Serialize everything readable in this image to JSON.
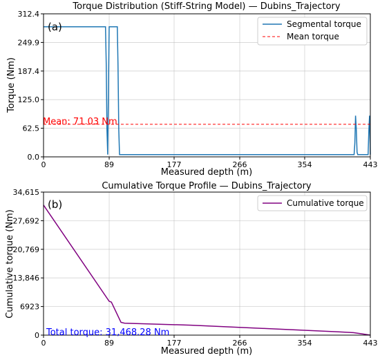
{
  "chart_data": [
    {
      "type": "line",
      "panel_label": "(a)",
      "title": "Torque Distribution (Stiff-String Model) — Dubins_Trajectory",
      "xlabel": "Measured depth (m)",
      "ylabel": "Torque (Nm)",
      "xlim": [
        0,
        443
      ],
      "ylim": [
        0,
        312.4
      ],
      "xticks": [
        0,
        89,
        177,
        266,
        354,
        443
      ],
      "yticks": [
        0.0,
        62.5,
        125.0,
        187.4,
        249.9,
        312.4
      ],
      "ytick_labels": [
        "0.0",
        "62.5",
        "125.0",
        "187.4",
        "249.9",
        "312.4"
      ],
      "grid": true,
      "legend_position": "top-right",
      "annotation": {
        "text": "Mean: 71.03 Nm",
        "color": "#ff0000",
        "x": 0,
        "y": 71.03
      },
      "series": [
        {
          "name": "Segmental torque",
          "color": "#1f77b4",
          "style": "solid",
          "x": [
            0,
            83,
            84,
            85,
            86,
            87,
            89,
            90,
            91,
            100,
            101,
            102,
            103,
            104,
            105,
            110,
            200,
            300,
            400,
            420,
            421,
            422,
            423,
            424,
            425,
            426,
            427,
            428,
            429,
            440,
            441,
            442,
            443
          ],
          "y": [
            284,
            284,
            284,
            200,
            60,
            5,
            284,
            284,
            284,
            284,
            200,
            60,
            5,
            5,
            5,
            5,
            5,
            5,
            5,
            5,
            5,
            30,
            90,
            60,
            10,
            5,
            5,
            5,
            5,
            5,
            60,
            90,
            5
          ]
        },
        {
          "name": "Mean torque",
          "color": "#ff0000",
          "style": "dashed",
          "x": [
            0,
            443
          ],
          "y": [
            71.03,
            71.03
          ]
        }
      ]
    },
    {
      "type": "line",
      "panel_label": "(b)",
      "title": "Cumulative Torque Profile — Dubins_Trajectory",
      "xlabel": "Measured depth (m)",
      "ylabel": "Cumulative torque (Nm)",
      "xlim": [
        0,
        443
      ],
      "ylim": [
        0,
        34615
      ],
      "xticks": [
        0,
        89,
        177,
        266,
        354,
        443
      ],
      "yticks": [
        0,
        6923,
        13846,
        20769,
        27692,
        34615
      ],
      "ytick_labels": [
        "0",
        "6923",
        "13,846",
        "20,769",
        "27,692",
        "34,615"
      ],
      "grid": true,
      "legend_position": "top-right",
      "annotation": {
        "text": "Total torque: 31,468.28 Nm",
        "color": "#0000ff",
        "x": 0,
        "y": 0
      },
      "series": [
        {
          "name": "Cumulative torque",
          "color": "#800080",
          "style": "solid",
          "x": [
            0,
            89,
            92,
            105,
            110,
            200,
            300,
            400,
            420,
            430,
            443
          ],
          "y": [
            31468,
            8200,
            8000,
            3100,
            2900,
            2400,
            1600,
            800,
            600,
            350,
            0
          ]
        }
      ]
    }
  ]
}
